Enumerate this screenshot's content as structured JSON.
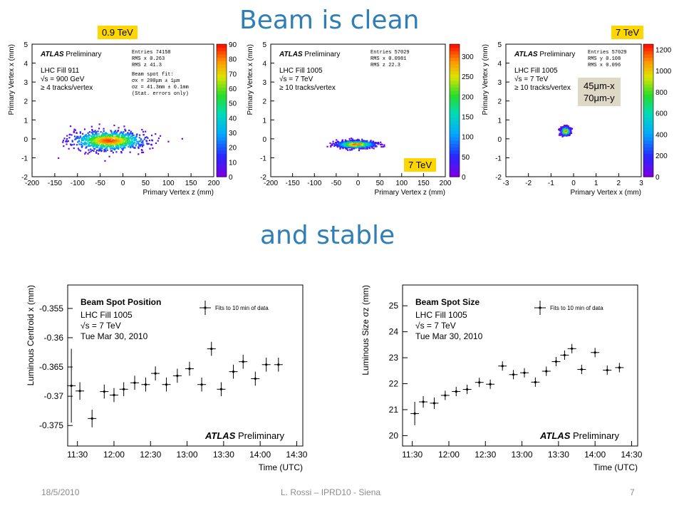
{
  "slide": {
    "title": "Beam is clean",
    "subtitle": "and stable",
    "footer_date": "18/5/2010",
    "footer_center": "L. Rossi  – IPRD10 - Siena",
    "page_number": "7",
    "tag_left": "0.9 TeV",
    "tag_right": "7 TeV",
    "tag_mid": "7 TeV",
    "size_note_1": "45μm-x",
    "size_note_2": "70μm-y"
  },
  "chart_data": [
    {
      "type": "heatmap",
      "xlabel": "Primary Vertex z (mm)",
      "ylabel": "Primary Vertex x (mm)",
      "xlim": [
        -200,
        200
      ],
      "ylim": [
        -2,
        5
      ],
      "xticks": [
        -200,
        -150,
        -100,
        -50,
        0,
        50,
        100,
        150,
        200
      ],
      "yticks": [
        -2,
        -1,
        0,
        1,
        2,
        3,
        4,
        5
      ],
      "zticks": [
        0,
        10,
        20,
        30,
        40,
        50,
        60,
        70,
        80,
        90
      ],
      "zmax": 90,
      "title_bold": "ATLAS",
      "title_rest": "Preliminary",
      "labels": [
        "LHC Fill 911",
        "√s = 900 GeV",
        "≥ 4 tracks/vertex"
      ],
      "stats": [
        "Entries  74158",
        "RMS x    0.263",
        "RMS z     41.3"
      ],
      "fit": [
        "Beam spot fit:",
        "σx =  200μm ± 1μm",
        "σz = 41.3mm ± 0.1mm",
        "(Stat. errors only)"
      ],
      "cloud": {
        "cx": -30,
        "cy": -0.1,
        "sx": 41.3,
        "sy": 0.263
      }
    },
    {
      "type": "heatmap",
      "xlabel": "Primary Vertex z (mm)",
      "ylabel": "Primary Vertex x (mm)",
      "xlim": [
        -200,
        200
      ],
      "ylim": [
        -2,
        5
      ],
      "xticks": [
        -200,
        -150,
        -100,
        -50,
        0,
        50,
        100,
        150,
        200
      ],
      "yticks": [
        -2,
        -1,
        0,
        1,
        2,
        3,
        4,
        5
      ],
      "zticks": [
        0,
        50,
        100,
        150,
        200,
        250,
        300
      ],
      "zmax": 330,
      "title_bold": "ATLAS",
      "title_rest": "Preliminary",
      "labels": [
        "LHC Fill 1005",
        "√s = 7 TeV",
        "≥ 10 tracks/vertex"
      ],
      "stats": [
        "Entries  57029",
        "RMS x   0.0981",
        "RMS z     22.3"
      ],
      "fit": [],
      "cloud": {
        "cx": -5,
        "cy": -0.3,
        "sx": 22.3,
        "sy": 0.0981
      }
    },
    {
      "type": "heatmap",
      "xlabel": "Primary Vertex x (mm)",
      "ylabel": "Primary Vertex y (mm)",
      "xlim": [
        -3,
        3
      ],
      "ylim": [
        -2,
        5
      ],
      "xticks": [
        -3,
        -2,
        -1,
        0,
        1,
        2,
        3
      ],
      "yticks": [
        -2,
        -1,
        0,
        1,
        2,
        3,
        4,
        5
      ],
      "zticks": [
        0,
        200,
        400,
        600,
        800,
        1000,
        1200
      ],
      "zmax": 1250,
      "title_bold": "ATLAS",
      "title_rest": "Preliminary",
      "labels": [
        "LHC Fill 1005",
        "√s = 7 TeV",
        "≥ 10 tracks/vertex"
      ],
      "stats": [
        "Entries  57029",
        "RMS y    0.108",
        "RMS x    0.096"
      ],
      "fit": [],
      "cloud": {
        "cx": -0.35,
        "cy": 0.4,
        "sx": 0.096,
        "sy": 0.108
      }
    },
    {
      "type": "scatter",
      "xlabel": "Time (UTC)",
      "ylabel": "Luminous Centroid x (mm)",
      "xlim": [
        -8,
        185
      ],
      "ylim": [
        -0.3785,
        -0.351
      ],
      "xticks": [
        0,
        30,
        60,
        90,
        120,
        150,
        180
      ],
      "xticklabels": [
        "11:30",
        "12:00",
        "12:30",
        "13:00",
        "13:30",
        "14:00",
        "14:30"
      ],
      "yticks": [
        -0.375,
        -0.37,
        -0.365,
        -0.36,
        -0.355
      ],
      "yticklabels": [
        "-0.375",
        "-0.37",
        "-0.365",
        "-0.36",
        "-0.355"
      ],
      "title": "Beam Spot Position",
      "labels": [
        "LHC Fill 1005",
        "√s = 7 TeV",
        "Tue Mar 30, 2010"
      ],
      "legend": "Fits to 10 min of data",
      "watermark_bold": "ATLAS",
      "watermark_rest": "Preliminary",
      "x": [
        -5,
        2,
        12,
        22,
        30,
        38,
        47,
        56,
        64,
        73,
        82,
        92,
        102,
        110,
        118,
        128,
        136,
        146,
        155,
        165
      ],
      "y": [
        -0.3682,
        -0.3691,
        -0.3738,
        -0.3692,
        -0.3698,
        -0.3688,
        -0.3677,
        -0.368,
        -0.3661,
        -0.368,
        -0.3665,
        -0.3653,
        -0.368,
        -0.3619,
        -0.3688,
        -0.3658,
        -0.3641,
        -0.367,
        -0.3646,
        -0.3646
      ],
      "yerr": [
        0.0063,
        0.0015,
        0.0015,
        0.0012,
        0.0012,
        0.0012,
        0.0012,
        0.0012,
        0.0012,
        0.0012,
        0.0012,
        0.0012,
        0.0012,
        0.0012,
        0.0012,
        0.0012,
        0.0012,
        0.0012,
        0.0012,
        0.0012
      ]
    },
    {
      "type": "scatter",
      "xlabel": "Time (UTC)",
      "ylabel": "Luminous Size σz (mm)",
      "xlim": [
        -8,
        185
      ],
      "ylim": [
        19.6,
        25.8
      ],
      "xticks": [
        0,
        30,
        60,
        90,
        120,
        150,
        180
      ],
      "xticklabels": [
        "11:30",
        "12:00",
        "12:30",
        "13:00",
        "13:30",
        "14:00",
        "14:30"
      ],
      "yticks": [
        20,
        21,
        22,
        23,
        24,
        25
      ],
      "yticklabels": [
        "20",
        "21",
        "22",
        "23",
        "24",
        "25"
      ],
      "title": "Beam Spot Size",
      "labels": [
        "LHC Fill 1005",
        "√s = 7 TeV",
        "Tue Mar 30, 2010"
      ],
      "legend": "Fits to 10 min of data",
      "watermark_bold": "ATLAS",
      "watermark_rest": "Preliminary",
      "x": [
        2,
        9,
        18,
        27,
        36,
        45,
        55,
        64,
        74,
        83,
        92,
        101,
        110,
        118,
        125,
        131,
        139,
        150,
        160,
        170
      ],
      "y": [
        20.85,
        21.3,
        21.25,
        21.55,
        21.7,
        21.78,
        22.05,
        21.98,
        22.68,
        22.35,
        22.42,
        22.06,
        22.48,
        22.85,
        23.1,
        23.35,
        22.55,
        23.2,
        22.52,
        22.62
      ],
      "yerr": [
        0.45,
        0.22,
        0.22,
        0.18,
        0.18,
        0.18,
        0.18,
        0.18,
        0.18,
        0.18,
        0.18,
        0.18,
        0.18,
        0.18,
        0.18,
        0.18,
        0.18,
        0.18,
        0.18,
        0.18
      ]
    }
  ]
}
